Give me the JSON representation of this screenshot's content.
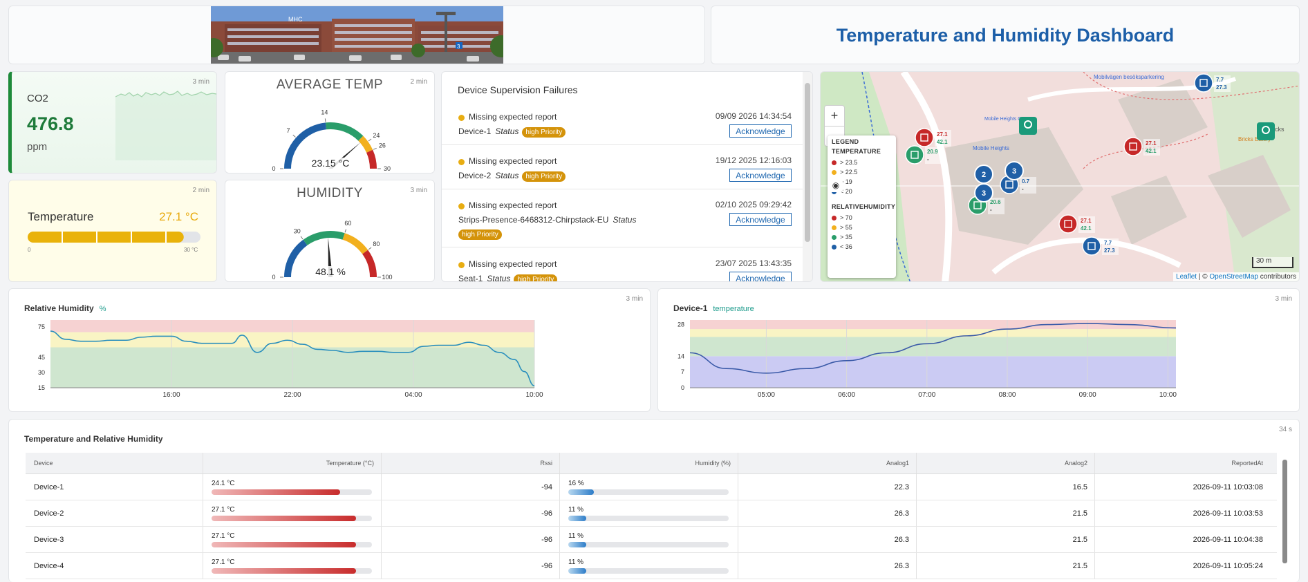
{
  "header": {
    "title": "Temperature and Humidity Dashboard",
    "building_sign": "MHC",
    "building_number": "3"
  },
  "co2": {
    "label": "CO2",
    "value": "476.8",
    "unit": "ppm",
    "age": "3 min"
  },
  "temperature": {
    "label": "Temperature",
    "value": "27.1 °C",
    "min": "0",
    "max": "30 °C",
    "fraction": 0.903,
    "age": "2 min"
  },
  "avg_temp": {
    "title": "AVERAGE TEMP",
    "value": "23.15 °C",
    "age": "2 min",
    "numeric": 23.15,
    "range": [
      0,
      30
    ],
    "ticks": [
      "0",
      "7",
      "14",
      "24",
      "26",
      "30"
    ]
  },
  "humidity": {
    "title": "HUMIDITY",
    "value": "48.1 %",
    "age": "3 min",
    "numeric": 48.1,
    "range": [
      0,
      100
    ],
    "ticks": [
      "0",
      "30",
      "60",
      "80",
      "100"
    ]
  },
  "failures": {
    "title": "Device Supervision Failures",
    "items": [
      {
        "message": "Missing expected report",
        "device": "Device-1",
        "status": "Status",
        "priority": "high Priority",
        "date": "09/09 2026 14:34:54",
        "action": "Acknowledge"
      },
      {
        "message": "Missing expected report",
        "device": "Device-2",
        "status": "Status",
        "priority": "high Priority",
        "date": "19/12 2025 12:16:03",
        "action": "Acknowledge"
      },
      {
        "message": "Missing expected report",
        "device": "Strips-Presence-6468312-Chirpstack-EU",
        "status": "Status",
        "priority": "high Priority",
        "date": "02/10 2025 09:29:42",
        "action": "Acknowledge"
      },
      {
        "message": "Missing expected report",
        "device": "Seat-1",
        "status": "Status",
        "priority": "high Priority",
        "date": "23/07 2025 13:43:35",
        "action": "Acknowledge"
      }
    ]
  },
  "map": {
    "legend_title": "LEGEND",
    "temperature_title": "TEMPERATURE",
    "temperature_items": [
      {
        "label": "> 23.5",
        "color": "#c62828"
      },
      {
        "label": "> 22.5",
        "color": "#f2b01e"
      },
      {
        "label": "> 19",
        "color": "#2a9d6a"
      },
      {
        "label": "< 20",
        "color": "#1f5fa6"
      }
    ],
    "humidity_title": "RELATIVEHUMIDITY",
    "humidity_items": [
      {
        "label": "> 70",
        "color": "#c62828"
      },
      {
        "label": "> 55",
        "color": "#f2b01e"
      },
      {
        "label": "> 35",
        "color": "#2a9d6a"
      },
      {
        "label": "< 36",
        "color": "#1f5fa6"
      }
    ],
    "places": [
      "Mobilvägen besöksparkering",
      "Mobile Heights",
      "Mobile Heights Center",
      "Bricks Eatery",
      "Bricks",
      "Mobile Heights Center"
    ],
    "markers": [
      {
        "t": "27.1",
        "h": "42.1"
      },
      {
        "t": "20.9",
        "h": "-"
      },
      {
        "t": "20.6",
        "h": "-"
      },
      {
        "t": "0.7",
        "h": "-"
      },
      {
        "t": "27.1",
        "h": "42.1"
      },
      {
        "t": "27.1",
        "h": "42.1"
      },
      {
        "t": "7.7",
        "h": "27.3"
      },
      {
        "t": "7.7",
        "h": "27.3"
      }
    ],
    "clusters": [
      "2",
      "3",
      "3"
    ],
    "scale": "30 m",
    "attribution_leaflet": "Leaflet",
    "attribution_sep": " | © ",
    "attribution_osm": "OpenStreetMap",
    "attribution_rest": " contributors",
    "zoom_in": "+",
    "zoom_out": "−"
  },
  "rh_chart": {
    "title": "Relative Humidity",
    "unit": "%",
    "age": "3 min"
  },
  "d1_chart": {
    "title": "Device-1",
    "unit": "temperature",
    "age": "3 min"
  },
  "chart_data": [
    {
      "type": "line",
      "title": "Relative Humidity",
      "ylabel": "%",
      "ylim": [
        15,
        82
      ],
      "yticks": [
        15,
        30,
        45,
        75
      ],
      "xtick_labels": [
        "16:00",
        "22:00",
        "04:00",
        "10:00"
      ],
      "bands": [
        {
          "from": 15,
          "to": 55,
          "color": "#cfe6cf"
        },
        {
          "from": 55,
          "to": 70,
          "color": "#f9f4c4"
        },
        {
          "from": 70,
          "to": 82,
          "color": "#f6d2d2"
        }
      ],
      "series": [
        {
          "x": [
            "10:00",
            "10:45",
            "11:30",
            "12:15",
            "13:00",
            "13:45",
            "14:30",
            "15:15",
            "16:00",
            "16:45",
            "17:30",
            "18:15",
            "19:00",
            "19:30",
            "20:15",
            "21:00",
            "21:45",
            "22:30",
            "23:15",
            "00:00",
            "00:45",
            "01:30",
            "02:15",
            "03:00",
            "03:45",
            "04:30",
            "05:15",
            "06:00",
            "06:45",
            "07:30",
            "08:15",
            "09:00",
            "09:30",
            "10:00"
          ],
          "values": [
            71,
            63,
            61,
            61,
            62,
            62,
            65,
            66,
            66,
            61,
            59,
            59,
            59,
            67,
            50,
            59,
            62,
            58,
            53,
            52,
            50,
            51,
            51,
            50,
            50,
            56,
            57,
            57,
            60,
            57,
            50,
            43,
            31,
            17
          ]
        }
      ]
    },
    {
      "type": "line",
      "title": "Device-1",
      "ylabel": "temperature",
      "ylim": [
        0,
        30
      ],
      "yticks": [
        0,
        7,
        14,
        28
      ],
      "xtick_labels": [
        "05:00",
        "06:00",
        "07:00",
        "08:00",
        "09:00",
        "10:00"
      ],
      "bands": [
        {
          "from": 0,
          "to": 14,
          "color": "#cbcbf3"
        },
        {
          "from": 14,
          "to": 22.5,
          "color": "#cfe6cf"
        },
        {
          "from": 22.5,
          "to": 26,
          "color": "#f9f4c4"
        },
        {
          "from": 26,
          "to": 30,
          "color": "#f6d2d2"
        }
      ],
      "series": [
        {
          "x": [
            "04:03",
            "04:30",
            "05:00",
            "05:30",
            "06:00",
            "06:30",
            "07:00",
            "07:30",
            "08:00",
            "08:30",
            "09:00",
            "09:30",
            "10:06"
          ],
          "values": [
            15.5,
            8.5,
            6.5,
            8.5,
            12,
            15.5,
            19.5,
            23,
            26,
            28,
            28.5,
            28,
            26.5
          ]
        }
      ]
    }
  ],
  "table": {
    "title": "Temperature and Relative Humidity",
    "age": "34 s",
    "headers": [
      "Device",
      "Temperature (°C)",
      "Rssi",
      "Humidity (%)",
      "Analog1",
      "Analog2",
      "ReportedAt"
    ],
    "rows": [
      {
        "device": "Device-1",
        "temperature": "24.1 °C",
        "t_frac": 0.8,
        "rssi": "-94",
        "humidity": "16 %",
        "h_frac": 0.16,
        "analog1": "22.3",
        "analog2": "16.5",
        "reported": "2026-09-11 10:03:08"
      },
      {
        "device": "Device-2",
        "temperature": "27.1 °C",
        "t_frac": 0.9,
        "rssi": "-96",
        "humidity": "11 %",
        "h_frac": 0.11,
        "analog1": "26.3",
        "analog2": "21.5",
        "reported": "2026-09-11 10:03:53"
      },
      {
        "device": "Device-3",
        "temperature": "27.1 °C",
        "t_frac": 0.9,
        "rssi": "-96",
        "humidity": "11 %",
        "h_frac": 0.11,
        "analog1": "26.3",
        "analog2": "21.5",
        "reported": "2026-09-11 10:04:38"
      },
      {
        "device": "Device-4",
        "temperature": "27.1 °C",
        "t_frac": 0.9,
        "rssi": "-96",
        "humidity": "11 %",
        "h_frac": 0.11,
        "analog1": "26.3",
        "analog2": "21.5",
        "reported": "2026-09-11 10:05:24"
      }
    ]
  }
}
